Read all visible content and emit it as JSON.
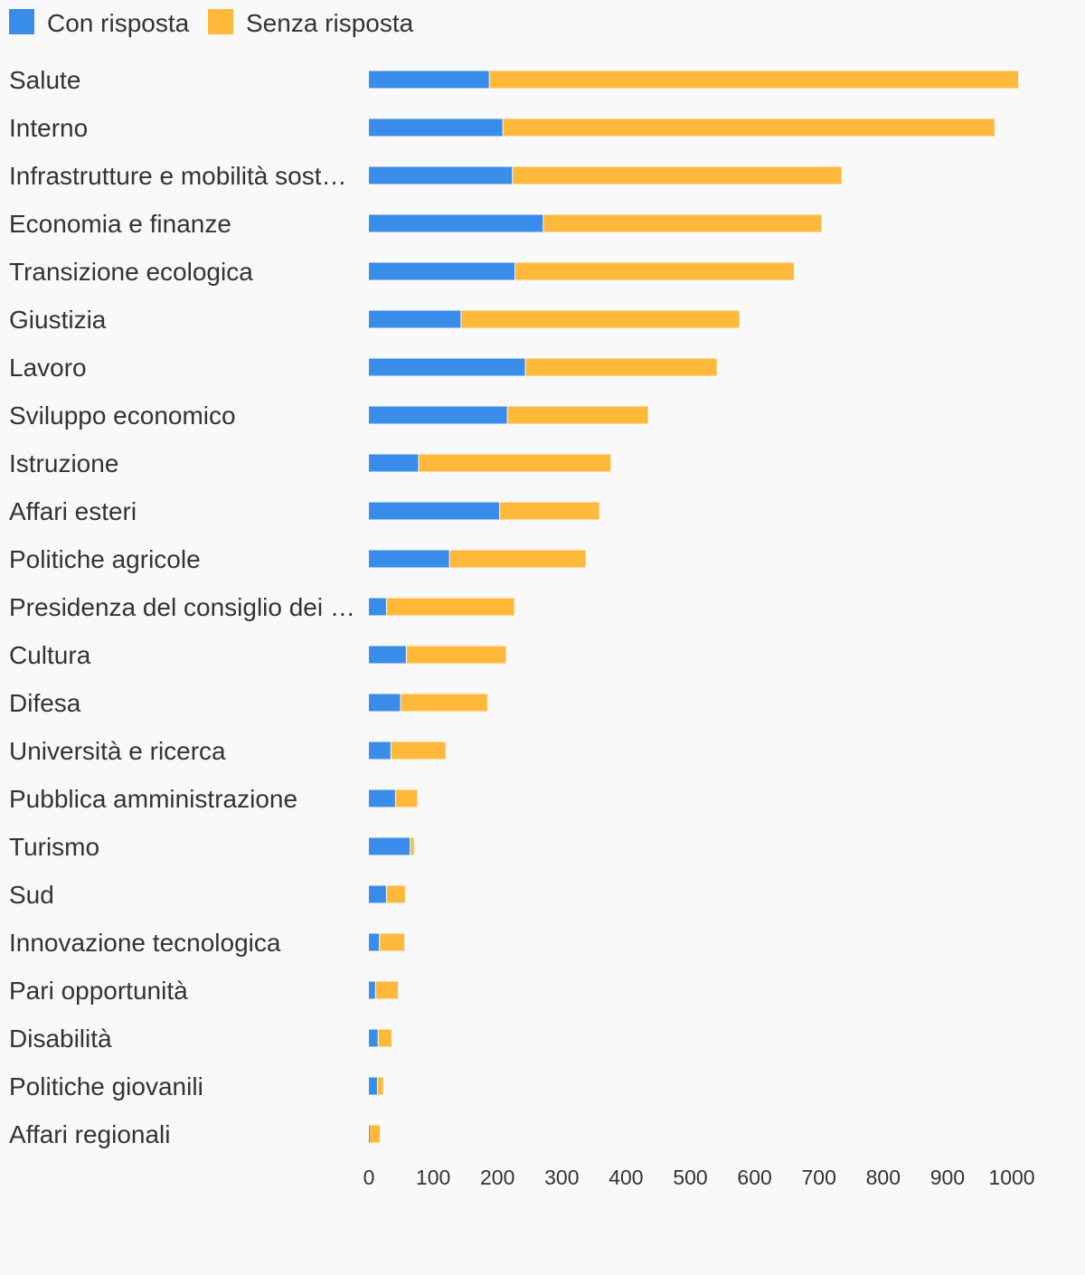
{
  "colors": {
    "background": "#f9f9f9",
    "text": "#333333",
    "con_risposta": "#3a8ceb",
    "senza_risposta": "#ffb93a"
  },
  "legend": {
    "placement": "top-left",
    "items": [
      "Con risposta",
      "Senza risposta"
    ]
  },
  "chart_data": {
    "type": "bar",
    "orientation": "horizontal",
    "stacked": true,
    "grid": false,
    "xlim": [
      0,
      1000
    ],
    "xticks": [
      "0",
      "100",
      "200",
      "300",
      "400",
      "500",
      "600",
      "700",
      "800",
      "900",
      "1000"
    ],
    "categories": [
      "Salute",
      "Interno",
      "Infrastrutture e mobilità sost…",
      "Economia e finanze",
      "Transizione ecologica",
      "Giustizia",
      "Lavoro",
      "Sviluppo economico",
      "Istruzione",
      "Affari esteri",
      "Politiche agricole",
      "Presidenza del consiglio dei …",
      "Cultura",
      "Difesa",
      "Università e ricerca",
      "Pubblica amministrazione",
      "Turismo",
      "Sud",
      "Innovazione tecnologica",
      "Pari opportunità",
      "Disabilità",
      "Politiche giovanili",
      "Affari regionali"
    ],
    "series": [
      {
        "name": "Con risposta",
        "color": "#3a8ceb",
        "values": [
          188,
          209,
          224,
          272,
          228,
          144,
          244,
          216,
          78,
          204,
          126,
          28,
          59,
          50,
          35,
          42,
          65,
          28,
          17,
          11,
          15,
          14,
          1
        ]
      },
      {
        "name": "Senza risposta",
        "color": "#ffb93a",
        "values": [
          822,
          764,
          511,
          432,
          433,
          432,
          297,
          218,
          298,
          154,
          211,
          198,
          154,
          134,
          84,
          33,
          5,
          28,
          38,
          34,
          20,
          8,
          16
        ]
      }
    ]
  }
}
